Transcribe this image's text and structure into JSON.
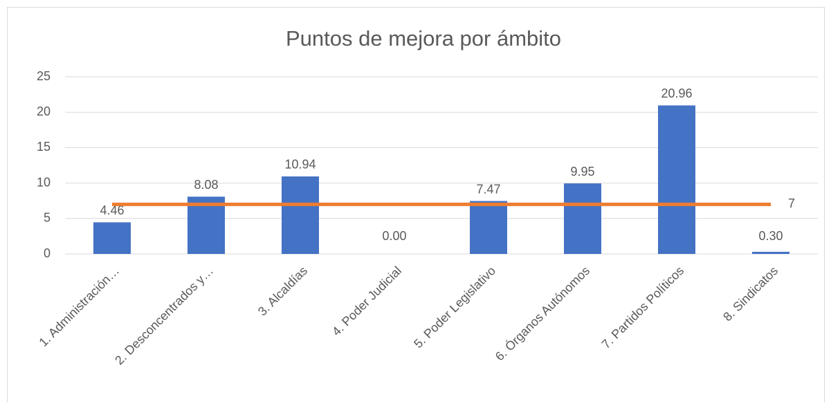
{
  "chart_data": {
    "type": "bar",
    "title": "Puntos de mejora por ámbito",
    "categories": [
      "1. Administración…",
      "2. Desconcentrados y…",
      "3. Alcaldías",
      "4. Poder Judicial",
      "5. Poder Legislativo",
      "6. Órganos Autónomos",
      "7. Partidos Políticos",
      "8. Sindicatos"
    ],
    "series": [
      {
        "type": "bar",
        "color": "#4472c4",
        "values": [
          4.46,
          8.08,
          10.94,
          0,
          7.47,
          9.95,
          20.96,
          0.3
        ],
        "value_labels": [
          "4.46",
          "8.08",
          "10.94",
          "0.00",
          "7.47",
          "9.95",
          "20.96",
          "0.30"
        ]
      },
      {
        "type": "line",
        "color": "#ed7d31",
        "values": [
          7,
          7,
          7,
          7,
          7,
          7,
          7,
          7
        ]
      }
    ],
    "ylim": [
      0,
      25
    ],
    "yticks": [
      0,
      5,
      10,
      15,
      20,
      25
    ],
    "grid": true
  }
}
